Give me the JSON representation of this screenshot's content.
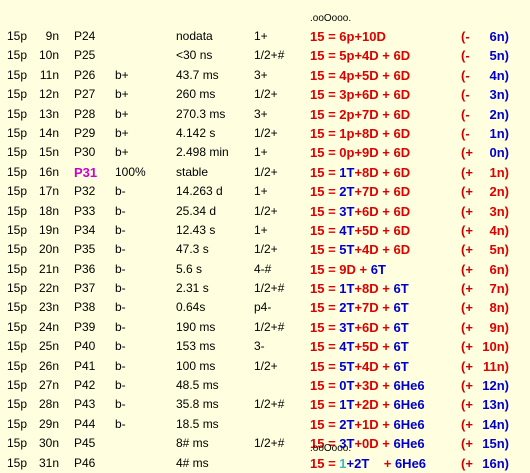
{
  "marks": {
    "top": ".ooOooo.",
    "bottom": ".ooOooo."
  },
  "rows": [
    {
      "p": "15p",
      "n": "9n",
      "id": "P24",
      "decay": "",
      "life": "nodata",
      "spin": "1+",
      "eq": [
        [
          "15 = 6p+10D",
          "r"
        ]
      ],
      "sign": "(-",
      "val": "6n)",
      "valColor": "b"
    },
    {
      "p": "15p",
      "n": "10n",
      "id": "P25",
      "decay": "",
      "life": "<30 ns",
      "spin": "1/2+#",
      "eq": [
        [
          "15 = 5p+4D + 6D",
          "r"
        ]
      ],
      "sign": "(-",
      "val": "5n)",
      "valColor": "b"
    },
    {
      "p": "15p",
      "n": "11n",
      "id": "P26",
      "decay": "b+",
      "life": "43.7 ms",
      "spin": "3+",
      "eq": [
        [
          "15 = 4p+5D + 6D",
          "r"
        ]
      ],
      "sign": "(-",
      "val": "4n)",
      "valColor": "b"
    },
    {
      "p": "15p",
      "n": "12n",
      "id": "P27",
      "decay": "b+",
      "life": "260 ms",
      "spin": "1/2+",
      "eq": [
        [
          "15 = 3p+6D + 6D",
          "r"
        ]
      ],
      "sign": "(-",
      "val": "3n)",
      "valColor": "b"
    },
    {
      "p": "15p",
      "n": "13n",
      "id": "P28",
      "decay": "b+",
      "life": "270.3 ms",
      "spin": "3+",
      "eq": [
        [
          "15 = 2p+7D + 6D",
          "r"
        ]
      ],
      "sign": "(-",
      "val": "2n)",
      "valColor": "b"
    },
    {
      "p": "15p",
      "n": "14n",
      "id": "P29",
      "decay": "b+",
      "life": "4.142 s",
      "spin": "1/2+",
      "eq": [
        [
          "15 = 1p+8D + 6D",
          "r"
        ]
      ],
      "sign": "(-",
      "val": "1n)",
      "valColor": "b"
    },
    {
      "p": "15p",
      "n": "15n",
      "id": "P30",
      "decay": "b+",
      "life": "2.498 min",
      "spin": "1+",
      "eq": [
        [
          "15 = 0p+9D + 6D",
          "r"
        ]
      ],
      "sign": "(+",
      "val": "0n)",
      "valColor": "b"
    },
    {
      "p": "15p",
      "n": "16n",
      "id": "P31",
      "stable": true,
      "decay": "100%",
      "life": "stable",
      "spin": "1/2+",
      "eq": [
        [
          "15 = ",
          "r"
        ],
        [
          "1T",
          "b"
        ],
        [
          "+8D + 6D",
          "r"
        ]
      ],
      "sign": "(+",
      "val": "1n)",
      "valColor": "r"
    },
    {
      "p": "15p",
      "n": "17n",
      "id": "P32",
      "decay": "b-",
      "life": "14.263 d",
      "spin": "1+",
      "eq": [
        [
          "15 = ",
          "r"
        ],
        [
          "2T",
          "b"
        ],
        [
          "+7D + 6D",
          "r"
        ]
      ],
      "sign": "(+",
      "val": "2n)",
      "valColor": "r"
    },
    {
      "p": "15p",
      "n": "18n",
      "id": "P33",
      "decay": "b-",
      "life": "25.34 d",
      "spin": "1/2+",
      "eq": [
        [
          "15 = ",
          "r"
        ],
        [
          "3T",
          "b"
        ],
        [
          "+6D + 6D",
          "r"
        ]
      ],
      "sign": "(+",
      "val": "3n)",
      "valColor": "r"
    },
    {
      "p": "15p",
      "n": "19n",
      "id": "P34",
      "decay": "b-",
      "life": "12.43 s",
      "spin": "1+",
      "eq": [
        [
          "15 = ",
          "r"
        ],
        [
          "4T",
          "b"
        ],
        [
          "+5D + 6D",
          "r"
        ]
      ],
      "sign": "(+",
      "val": "4n)",
      "valColor": "r"
    },
    {
      "p": "15p",
      "n": "20n",
      "id": "P35",
      "decay": "b-",
      "life": "47.3 s",
      "spin": "1/2+",
      "eq": [
        [
          "15 = ",
          "r"
        ],
        [
          "5T",
          "b"
        ],
        [
          "+4D + 6D",
          "r"
        ]
      ],
      "sign": "(+",
      "val": "5n)",
      "valColor": "r"
    },
    {
      "p": "15p",
      "n": "21n",
      "id": "P36",
      "decay": "b-",
      "life": "5.6 s",
      "spin": "4-#",
      "eq": [
        [
          "15 = 9D + ",
          "r"
        ],
        [
          "6T",
          "b"
        ]
      ],
      "sign": "(+",
      "val": "6n)",
      "valColor": "r"
    },
    {
      "p": "15p",
      "n": "22n",
      "id": "P37",
      "decay": "b-",
      "life": "2.31 s",
      "spin": "1/2+#",
      "eq": [
        [
          "15 = ",
          "r"
        ],
        [
          "1T",
          "b"
        ],
        [
          "+8D + ",
          "r"
        ],
        [
          "6T",
          "b"
        ]
      ],
      "sign": "(+",
      "val": "7n)",
      "valColor": "r"
    },
    {
      "p": "15p",
      "n": "23n",
      "id": "P38",
      "decay": "b-",
      "life": "0.64s",
      "spin": "p4-",
      "eq": [
        [
          "15 = ",
          "r"
        ],
        [
          "2T",
          "b"
        ],
        [
          "+7D + ",
          "r"
        ],
        [
          "6T",
          "b"
        ]
      ],
      "sign": "(+",
      "val": "8n)",
      "valColor": "r"
    },
    {
      "p": "15p",
      "n": "24n",
      "id": "P39",
      "decay": "b-",
      "life": "190 ms",
      "spin": "1/2+#",
      "eq": [
        [
          "15 = ",
          "r"
        ],
        [
          "3T",
          "b"
        ],
        [
          "+6D + ",
          "r"
        ],
        [
          "6T",
          "b"
        ]
      ],
      "sign": "(+",
      "val": "9n)",
      "valColor": "r"
    },
    {
      "p": "15p",
      "n": "25n",
      "id": "P40",
      "decay": "b-",
      "life": "153 ms",
      "spin": "3-",
      "eq": [
        [
          "15 = ",
          "r"
        ],
        [
          "4T",
          "b"
        ],
        [
          "+5D + ",
          "r"
        ],
        [
          "6T",
          "b"
        ]
      ],
      "sign": "(+",
      "val": "10n)",
      "valColor": "r"
    },
    {
      "p": "15p",
      "n": "26n",
      "id": "P41",
      "decay": "b-",
      "life": "100 ms",
      "spin": "1/2+",
      "eq": [
        [
          "15 = ",
          "r"
        ],
        [
          "5T",
          "b"
        ],
        [
          "+4D + ",
          "r"
        ],
        [
          "6T",
          "b"
        ]
      ],
      "sign": "(+",
      "val": "11n)",
      "valColor": "r"
    },
    {
      "p": "15p",
      "n": "27n",
      "id": "P42",
      "decay": "b-",
      "life": "48.5 ms",
      "spin": "",
      "eq": [
        [
          "15 = ",
          "r"
        ],
        [
          "0T",
          "b"
        ],
        [
          "+3D + ",
          "r"
        ],
        [
          "6He6",
          "b"
        ]
      ],
      "sign": "(+",
      "val": "12n)",
      "valColor": "b"
    },
    {
      "p": "15p",
      "n": "28n",
      "id": "P43",
      "decay": "b-",
      "life": "35.8 ms",
      "spin": "1/2+#",
      "eq": [
        [
          "15 = ",
          "r"
        ],
        [
          "1T",
          "b"
        ],
        [
          "+2D + ",
          "r"
        ],
        [
          "6He6",
          "b"
        ]
      ],
      "sign": "(+",
      "val": "13n)",
      "valColor": "b"
    },
    {
      "p": "15p",
      "n": "29n",
      "id": "P44",
      "decay": "b-",
      "life": "18.5 ms",
      "spin": "",
      "eq": [
        [
          "15 = ",
          "r"
        ],
        [
          "2T",
          "b"
        ],
        [
          "+1D + ",
          "r"
        ],
        [
          "6He6",
          "b"
        ]
      ],
      "sign": "(+",
      "val": "14n)",
      "valColor": "b"
    },
    {
      "p": "15p",
      "n": "30n",
      "id": "P45",
      "decay": "",
      "life": "8# ms",
      "spin": "1/2+#",
      "eq": [
        [
          "15 = ",
          "r"
        ],
        [
          "3T",
          "b"
        ],
        [
          "+0D + ",
          "r"
        ],
        [
          "6He6",
          "b"
        ]
      ],
      "sign": "(+",
      "val": "15n)",
      "valColor": "b"
    },
    {
      "p": "15p",
      "n": "31n",
      "id": "P46",
      "decay": "",
      "life": "4# ms",
      "spin": "",
      "eq": [
        [
          "15 = ",
          "r"
        ],
        [
          "1",
          "c"
        ],
        [
          "+2T    ",
          "b"
        ],
        [
          "+ ",
          "r"
        ],
        [
          "6He6",
          "b"
        ]
      ],
      "sign": "(+",
      "val": "16n)",
      "valColor": "b"
    }
  ]
}
